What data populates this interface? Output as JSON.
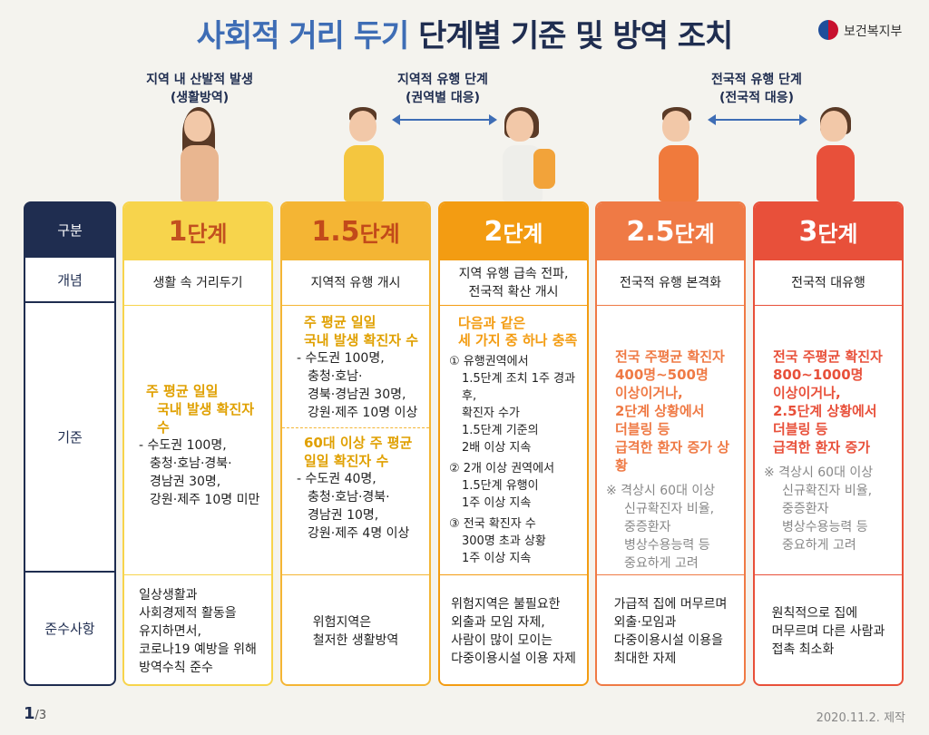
{
  "title": {
    "part1": "사회적 거리 두기",
    "part2": "단계별 기준 및 방역 조치"
  },
  "logo": {
    "icon": "korea-taegeuk-icon",
    "text": "보건복지부"
  },
  "phases": [
    {
      "line1": "지역 내 산발적 발생",
      "line2": "(생활방역)"
    },
    {
      "line1": "지역적 유행 단계",
      "line2": "(권역별 대응)"
    },
    {
      "line1": "전국적 유행 단계",
      "line2": "(전국적 대응)"
    }
  ],
  "row_headers": {
    "stage": "구분",
    "concept": "개념",
    "criteria": "기준",
    "comply": "준수사항"
  },
  "stages": [
    {
      "num": "1",
      "suffix": "단계",
      "concept": "생활 속 거리두기",
      "criteria_head": [
        "주 평균 일일",
        "국내 발생 확진자 수"
      ],
      "criteria_body": [
        "- 수도권 100명,",
        "충청·호남·경북·",
        "경남권 30명,",
        "강원·제주 10명 미만"
      ],
      "comply": [
        "일상생활과",
        "사회경제적 활동을",
        "유지하면서,",
        "코로나19 예방을 위해",
        "방역수칙 준수"
      ]
    },
    {
      "num": "1.5",
      "suffix": "단계",
      "concept": "지역적 유행 개시",
      "criteria_head": [
        "주 평균 일일",
        "국내 발생 확진자 수"
      ],
      "criteria_body": [
        "- 수도권 100명,",
        "충청·호남·",
        "경북·경남권 30명,",
        "강원·제주 10명 이상"
      ],
      "criteria_head2": [
        "60대 이상 주 평균",
        "일일 확진자 수"
      ],
      "criteria_body2": [
        "- 수도권 40명,",
        "충청·호남·경북·",
        "경남권 10명,",
        "강원·제주 4명 이상"
      ],
      "comply": [
        "위험지역은",
        "철저한 생활방역"
      ]
    },
    {
      "num": "2",
      "suffix": "단계",
      "concept": [
        "지역 유행 급속 전파,",
        "전국적 확산 개시"
      ],
      "criteria_head": [
        "다음과 같은",
        "세 가지 중 하나 충족"
      ],
      "criteria_items": [
        [
          "① 유행권역에서",
          "1.5단계 조치 1주 경과 후,",
          "확진자 수가",
          "1.5단계 기준의",
          "2배 이상 지속"
        ],
        [
          "② 2개 이상 권역에서",
          "1.5단계 유행이",
          "1주 이상 지속"
        ],
        [
          "③ 전국 확진자 수",
          "300명 초과 상황",
          "1주 이상 지속"
        ]
      ],
      "comply": [
        "위험지역은 불필요한",
        "외출과 모임 자제,",
        "사람이 많이 모이는",
        "다중이용시설 이용 자제"
      ]
    },
    {
      "num": "2.5",
      "suffix": "단계",
      "concept": "전국적 유행 본격화",
      "criteria_head": [
        "전국 주평균 확진자",
        "400명~500명",
        "이상이거나,",
        "2단계 상황에서",
        "더블링 등",
        "급격한 환자 증가 상황"
      ],
      "criteria_note": [
        "※ 격상시 60대 이상",
        "신규확진자 비율,",
        "중증환자",
        "병상수용능력 등",
        "중요하게 고려"
      ],
      "comply": [
        "가급적 집에 머무르며",
        "외출·모임과",
        "다중이용시설 이용을",
        "최대한 자제"
      ]
    },
    {
      "num": "3",
      "suffix": "단계",
      "concept": "전국적 대유행",
      "criteria_head": [
        "전국 주평균 확진자",
        "800~1000명",
        "이상이거나,",
        "2.5단계 상황에서",
        "더블링 등",
        "급격한 환자 증가"
      ],
      "criteria_note": [
        "※ 격상시 60대 이상",
        "신규확진자 비율,",
        "중증환자",
        "병상수용능력 등",
        "중요하게 고려"
      ],
      "comply": [
        "원칙적으로 집에",
        "머무르며 다른 사람과",
        "접촉 최소화"
      ]
    }
  ],
  "colors": {
    "stage1": "#f7d44c",
    "stage1_5": "#f4b534",
    "stage2": "#f39c12",
    "stage2_5": "#ef7a45",
    "stage3": "#e8503a",
    "navy": "#1f2d50"
  },
  "footer": {
    "page": "1",
    "total": "/3",
    "date": "2020.11.2. 제작"
  }
}
